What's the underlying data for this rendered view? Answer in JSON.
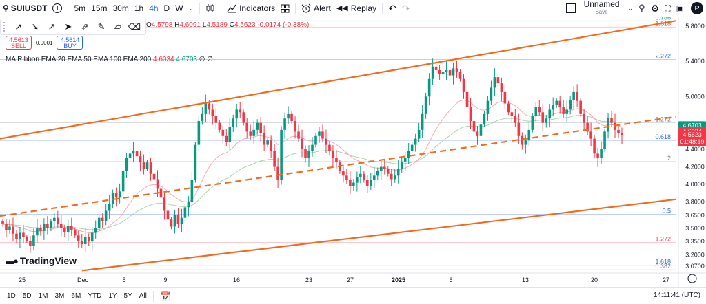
{
  "toolbar": {
    "symbol": "SUIUSDT",
    "add_symbol_icon": "plus-circle-icon",
    "intervals": [
      {
        "label": "5m",
        "active": false
      },
      {
        "label": "15m",
        "active": false
      },
      {
        "label": "30m",
        "active": false
      },
      {
        "label": "1h",
        "active": false
      },
      {
        "label": "4h",
        "active": true
      },
      {
        "label": "D",
        "active": false
      },
      {
        "label": "W",
        "active": false
      }
    ],
    "indicators_label": "Indicators",
    "alert_label": "Alert",
    "replay_label": "Replay",
    "layout_name": "Unnamed",
    "save_label": "Save",
    "avatar_letter": "P"
  },
  "legend": {
    "open_key": "O",
    "open_val": "4.5798",
    "high_key": "H",
    "high_val": "4.6091",
    "low_key": "L",
    "low_val": "4.5189",
    "close_key": "C",
    "close_val": "4.5623",
    "change": "-0.0174 (-0.38%)"
  },
  "trade": {
    "sell_price": "4.5613",
    "sell_label": "SELL",
    "spread": "0.0001",
    "buy_price": "4.5614",
    "buy_label": "BUY"
  },
  "indicator": {
    "name": "MA Ribbon EMA 20 EMA 50 EMA 100 EMA 200",
    "v1": "4.6034",
    "v2": "4.6703",
    "v3": "∅ ∅"
  },
  "price_axis": {
    "labels": [
      "5.8000",
      "5.4000",
      "5.0000",
      "4.4000",
      "4.2000",
      "4.0000",
      "3.8000",
      "3.6500",
      "3.5000",
      "3.3500",
      "3.2000",
      "3.0700"
    ],
    "badge_green": "4.6703",
    "badge_red1": "4.6034",
    "badge_red2_price": "4.5623",
    "badge_red2_timer": "01:48:19"
  },
  "fib": {
    "labels": [
      "0.786",
      "1.618",
      "2.272",
      "1.272",
      "0.618",
      "2",
      "0.5",
      "1.272",
      "1.618",
      "0.382"
    ]
  },
  "time_axis": {
    "labels": [
      "25",
      "Dec",
      "5",
      "9",
      "16",
      "23",
      "27",
      "2025",
      "6",
      "13",
      "20",
      "27"
    ]
  },
  "watermark": "TradingView",
  "bottom": {
    "ranges": [
      "1D",
      "5D",
      "1M",
      "3M",
      "6M",
      "YTD",
      "1Y",
      "5Y",
      "All"
    ],
    "clock": "14:11:41 (UTC)"
  },
  "colors": {
    "up": "#089981",
    "down": "#f23645",
    "trend": "#f26b1d",
    "ema_fast": "#f6a9b0",
    "ema_slow": "#a5d6a7",
    "fib_line": "#b2b5be"
  },
  "chart_data": {
    "type": "candlestick",
    "symbol": "SUIUSDT",
    "interval": "4h",
    "y_range": [
      3.02,
      5.92
    ],
    "closes": [
      3.55,
      3.48,
      3.52,
      3.44,
      3.38,
      3.45,
      3.4,
      3.36,
      3.3,
      3.42,
      3.5,
      3.47,
      3.55,
      3.5,
      3.58,
      3.62,
      3.55,
      3.5,
      3.46,
      3.53,
      3.48,
      3.42,
      3.36,
      3.32,
      3.4,
      3.35,
      3.45,
      3.5,
      3.62,
      3.58,
      3.7,
      3.78,
      3.9,
      3.85,
      3.92,
      4.15,
      4.3,
      4.35,
      4.38,
      4.32,
      4.25,
      4.18,
      4.25,
      4.12,
      4.06,
      3.95,
      3.85,
      3.7,
      3.6,
      3.52,
      3.65,
      3.55,
      3.62,
      3.74,
      3.8,
      4.05,
      4.45,
      4.72,
      4.8,
      4.92,
      4.85,
      4.78,
      4.7,
      4.62,
      4.55,
      4.48,
      4.65,
      4.75,
      4.85,
      4.82,
      4.7,
      4.6,
      4.55,
      4.62,
      4.7,
      4.58,
      4.45,
      4.5,
      4.38,
      4.2,
      4.05,
      4.62,
      4.75,
      4.8,
      4.72,
      4.6,
      4.52,
      4.4,
      4.3,
      4.38,
      4.45,
      4.55,
      4.6,
      4.52,
      4.45,
      4.38,
      4.3,
      4.25,
      4.15,
      4.1,
      4.05,
      3.98,
      4.02,
      4.08,
      4.12,
      4.05,
      3.98,
      4.05,
      4.1,
      4.15,
      4.2,
      4.18,
      4.12,
      4.06,
      4.1,
      4.18,
      4.26,
      4.3,
      4.38,
      4.45,
      4.52,
      4.62,
      4.8,
      5.0,
      5.2,
      5.34,
      5.3,
      5.26,
      5.28,
      5.3,
      5.24,
      5.32,
      5.28,
      5.2,
      5.05,
      4.88,
      4.72,
      4.6,
      4.55,
      4.68,
      4.8,
      4.95,
      5.1,
      5.22,
      5.15,
      5.05,
      4.92,
      4.82,
      4.78,
      4.7,
      4.55,
      4.45,
      4.5,
      4.62,
      4.78,
      4.88,
      4.82,
      4.7,
      4.75,
      4.85,
      4.9,
      4.95,
      4.88,
      4.8,
      4.85,
      4.96,
      5.05,
      4.95,
      4.8,
      4.7,
      4.6,
      4.52,
      4.35,
      4.3,
      4.4,
      4.6,
      4.76,
      4.7,
      4.62,
      4.58,
      4.5623
    ],
    "trendlines": [
      {
        "name": "channel-upper",
        "from": [
          0,
          4.52
        ],
        "to": [
          186,
          5.86
        ],
        "style": "solid"
      },
      {
        "name": "channel-middle",
        "from": [
          0,
          3.64
        ],
        "to": [
          186,
          4.77
        ],
        "style": "dashed"
      },
      {
        "name": "channel-lower",
        "from": [
          23,
          3.02
        ],
        "to": [
          186,
          3.83
        ],
        "style": "solid"
      }
    ]
  }
}
